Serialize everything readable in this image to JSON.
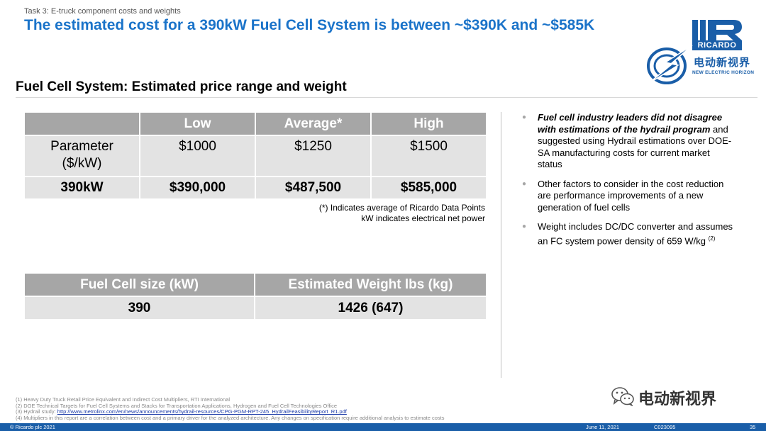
{
  "header": {
    "task": "Task 3: E-truck component costs and weights",
    "headline": "The estimated cost for a 390kW Fuel Cell System is between ~$390K and ~$585K"
  },
  "brand": {
    "logo_word": "RICARDO",
    "cn_name": "电动新视界",
    "en_name": "NEW ELECTRIC HORIZON",
    "brand_color": "#1a5ea8",
    "headline_color": "#1a73c9"
  },
  "section_title": "Fuel Cell System: Estimated price range and weight",
  "price_table": {
    "headers": [
      "",
      "Low",
      "Average*",
      "High"
    ],
    "row1": {
      "label_line1": "Parameter",
      "label_line2": "($/kW)",
      "low": "$1000",
      "average": "$1250",
      "high": "$1500"
    },
    "row2": {
      "label": "390kW",
      "low": "$390,000",
      "average": "$487,500",
      "high": "$585,000"
    }
  },
  "notes": {
    "line1": "(*) Indicates average of Ricardo Data Points",
    "line2": "kW indicates electrical net power"
  },
  "weight_table": {
    "headers": [
      "Fuel Cell size (kW)",
      "Estimated Weight lbs (kg)"
    ],
    "row": [
      "390",
      "1426 (647)"
    ]
  },
  "bullets": {
    "b1_lead": "Fuel cell industry leaders did not disagree with estimations of the hydrail program",
    "b1_rest": " and suggested using Hydrail estimations over DOE-SA manufacturing costs for current market status",
    "b2": "Other factors to consider in the cost reduction are performance improvements of a new generation of fuel cells",
    "b3": "Weight includes DC/DC converter and assumes an FC system power density of 659 W/kg",
    "b3_sup": "(2)",
    "dot": "●"
  },
  "footnotes": {
    "f1": "(1)  Heavy Duty Truck Retail Price Equivalent and Indirect Cost Multipliers, RTI International",
    "f2": "(2)  DOE Technical Targets for Fuel Cell Systems and Stacks for Transportation Applications, Hydrogen and Fuel Cell Technologies Office",
    "f3_prefix": "(3)  Hydrail study: ",
    "f3_link": "http://www.metrolinx.com/en/news/announcements/hydrail-resources/CPG-PGM-RPT-245_HydrailFeasibilityReport_R1.pdf",
    "f4": "(4)  Multipliers in this report are a correlation between cost and a primary driver for the analyzed architecture. Any changes on specification require additional analysis to estimate costs"
  },
  "watermark": {
    "text": "电动新视界",
    "icon": "wechat-icon"
  },
  "footer": {
    "copyright": "© Ricardo plc 2021",
    "date": "June 11,  2021",
    "code": "C023095",
    "page": "35"
  }
}
